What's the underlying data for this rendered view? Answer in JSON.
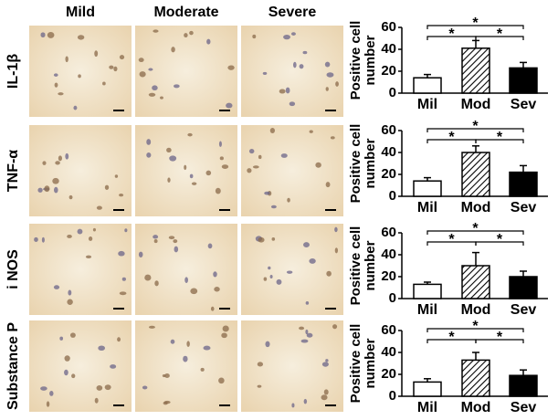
{
  "panel": {
    "columns": [
      "Mild",
      "Moderate",
      "Severe"
    ],
    "rows": [
      "IL-1β",
      "TNF-α",
      "i NOS",
      "Substance P"
    ]
  },
  "chart_data": [
    {
      "type": "bar",
      "ylabel": "Positive cell number",
      "categories": [
        "Mil",
        "Mod",
        "Sev"
      ],
      "values": [
        14,
        41,
        23
      ],
      "errors": [
        3,
        7,
        5
      ],
      "bar_styles": [
        "open",
        "hatched",
        "solid"
      ],
      "color": "#000000",
      "ylim": [
        0,
        60
      ],
      "yticks": [
        0,
        20,
        40,
        60
      ],
      "significance": [
        {
          "from": 0,
          "to": 2,
          "label": "*"
        },
        {
          "from": 0,
          "to": 1,
          "label": "*"
        },
        {
          "from": 1,
          "to": 2,
          "label": "*"
        }
      ]
    },
    {
      "type": "bar",
      "ylabel": "Positive cell number",
      "categories": [
        "Mil",
        "Mod",
        "Sev"
      ],
      "values": [
        14,
        40,
        22
      ],
      "errors": [
        3,
        6,
        6
      ],
      "bar_styles": [
        "open",
        "hatched",
        "solid"
      ],
      "color": "#000000",
      "ylim": [
        0,
        60
      ],
      "yticks": [
        0,
        20,
        40,
        60
      ],
      "significance": [
        {
          "from": 0,
          "to": 2,
          "label": "*"
        },
        {
          "from": 0,
          "to": 1,
          "label": "*"
        },
        {
          "from": 1,
          "to": 2,
          "label": "*"
        }
      ]
    },
    {
      "type": "bar",
      "ylabel": "Positive cell number",
      "categories": [
        "Mil",
        "Mod",
        "Sev"
      ],
      "values": [
        13,
        30,
        20
      ],
      "errors": [
        2,
        12,
        5
      ],
      "bar_styles": [
        "open",
        "hatched",
        "solid"
      ],
      "color": "#000000",
      "ylim": [
        0,
        60
      ],
      "yticks": [
        0,
        20,
        40,
        60
      ],
      "significance": [
        {
          "from": 0,
          "to": 2,
          "label": "*"
        },
        {
          "from": 0,
          "to": 1,
          "label": "*"
        },
        {
          "from": 1,
          "to": 2,
          "label": "*"
        }
      ]
    },
    {
      "type": "bar",
      "ylabel": "Positive cell number",
      "categories": [
        "Mil",
        "Mod",
        "Sev"
      ],
      "values": [
        13,
        33,
        19
      ],
      "errors": [
        3,
        7,
        5
      ],
      "bar_styles": [
        "open",
        "hatched",
        "solid"
      ],
      "color": "#000000",
      "ylim": [
        0,
        60
      ],
      "yticks": [
        0,
        20,
        40,
        60
      ],
      "significance": [
        {
          "from": 0,
          "to": 2,
          "label": "*"
        },
        {
          "from": 0,
          "to": 1,
          "label": "*"
        },
        {
          "from": 1,
          "to": 2,
          "label": "*"
        }
      ]
    }
  ]
}
